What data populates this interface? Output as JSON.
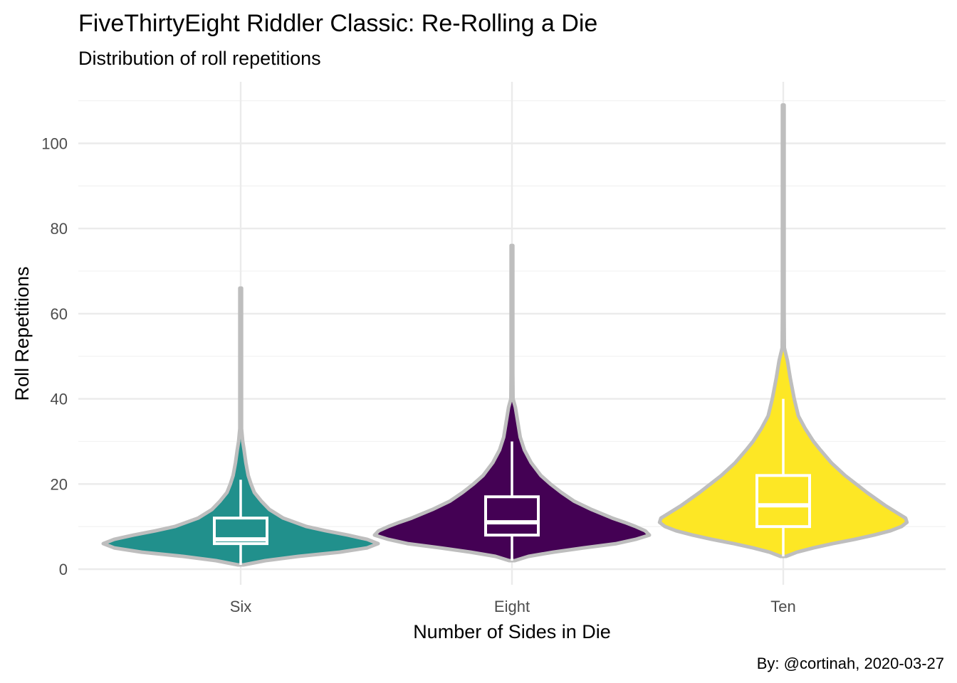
{
  "chart_data": {
    "type": "violin",
    "title": "FiveThirtyEight Riddler Classic: Re-Rolling a Die",
    "subtitle": "Distribution of roll repetitions",
    "xlabel": "Number of Sides in Die",
    "ylabel": "Roll Repetitions",
    "caption": "By: @cortinah, 2020-03-27",
    "categories": [
      "Six",
      "Eight",
      "Ten"
    ],
    "ylim": [
      -2,
      112
    ],
    "yticks": [
      0,
      20,
      40,
      60,
      80,
      100
    ],
    "grid": true,
    "series": [
      {
        "category": "Six",
        "color": "#21908C",
        "min": 1,
        "max": 66,
        "box": {
          "q1": 6,
          "median": 7,
          "q3": 12,
          "whisker_low": 1,
          "whisker_high": 21
        },
        "density": [
          [
            1,
            0.02
          ],
          [
            2,
            0.18
          ],
          [
            3,
            0.42
          ],
          [
            4,
            0.72
          ],
          [
            5,
            0.92
          ],
          [
            6,
            1.0
          ],
          [
            7,
            0.92
          ],
          [
            8,
            0.78
          ],
          [
            9,
            0.62
          ],
          [
            10,
            0.48
          ],
          [
            12,
            0.31
          ],
          [
            14,
            0.21
          ],
          [
            16,
            0.15
          ],
          [
            18,
            0.1
          ],
          [
            20,
            0.075
          ],
          [
            22,
            0.055
          ],
          [
            25,
            0.038
          ],
          [
            28,
            0.025
          ],
          [
            30,
            0.015
          ],
          [
            33,
            0.006
          ],
          [
            36,
            0.003
          ],
          [
            45,
            0.0018
          ],
          [
            55,
            0.0012
          ],
          [
            66,
            0.0008
          ]
        ]
      },
      {
        "category": "Eight",
        "color": "#440154",
        "min": 2,
        "max": 76,
        "box": {
          "q1": 8,
          "median": 11,
          "q3": 17,
          "whisker_low": 2,
          "whisker_high": 30
        },
        "density": [
          [
            2,
            0.02
          ],
          [
            3,
            0.12
          ],
          [
            4,
            0.3
          ],
          [
            5,
            0.52
          ],
          [
            6,
            0.76
          ],
          [
            7,
            0.9
          ],
          [
            8,
            1.0
          ],
          [
            9,
            0.97
          ],
          [
            10,
            0.9
          ],
          [
            11,
            0.82
          ],
          [
            12,
            0.73
          ],
          [
            14,
            0.58
          ],
          [
            16,
            0.45
          ],
          [
            18,
            0.36
          ],
          [
            20,
            0.28
          ],
          [
            22,
            0.21
          ],
          [
            25,
            0.14
          ],
          [
            28,
            0.09
          ],
          [
            31,
            0.06
          ],
          [
            35,
            0.04
          ],
          [
            38,
            0.025
          ],
          [
            40,
            0.008
          ],
          [
            46,
            0.004
          ],
          [
            55,
            0.002
          ],
          [
            65,
            0.0014
          ],
          [
            76,
            0.0008
          ]
        ]
      },
      {
        "category": "Ten",
        "color": "#FDE725",
        "min": 3,
        "max": 109,
        "box": {
          "q1": 10,
          "median": 15,
          "q3": 22,
          "whisker_low": 3,
          "whisker_high": 40
        },
        "density": [
          [
            3,
            0.02
          ],
          [
            4,
            0.1
          ],
          [
            5,
            0.22
          ],
          [
            6,
            0.36
          ],
          [
            7,
            0.52
          ],
          [
            8,
            0.66
          ],
          [
            9,
            0.78
          ],
          [
            10,
            0.86
          ],
          [
            11,
            0.9
          ],
          [
            12,
            0.89
          ],
          [
            13,
            0.84
          ],
          [
            15,
            0.74
          ],
          [
            18,
            0.61
          ],
          [
            20,
            0.53
          ],
          [
            22,
            0.45
          ],
          [
            25,
            0.35
          ],
          [
            28,
            0.27
          ],
          [
            30,
            0.22
          ],
          [
            33,
            0.16
          ],
          [
            36,
            0.11
          ],
          [
            40,
            0.08
          ],
          [
            45,
            0.05
          ],
          [
            49,
            0.03
          ],
          [
            52,
            0.008
          ],
          [
            60,
            0.004
          ],
          [
            70,
            0.003
          ],
          [
            85,
            0.002
          ],
          [
            100,
            0.0014
          ],
          [
            109,
            0.0008
          ]
        ]
      }
    ]
  }
}
